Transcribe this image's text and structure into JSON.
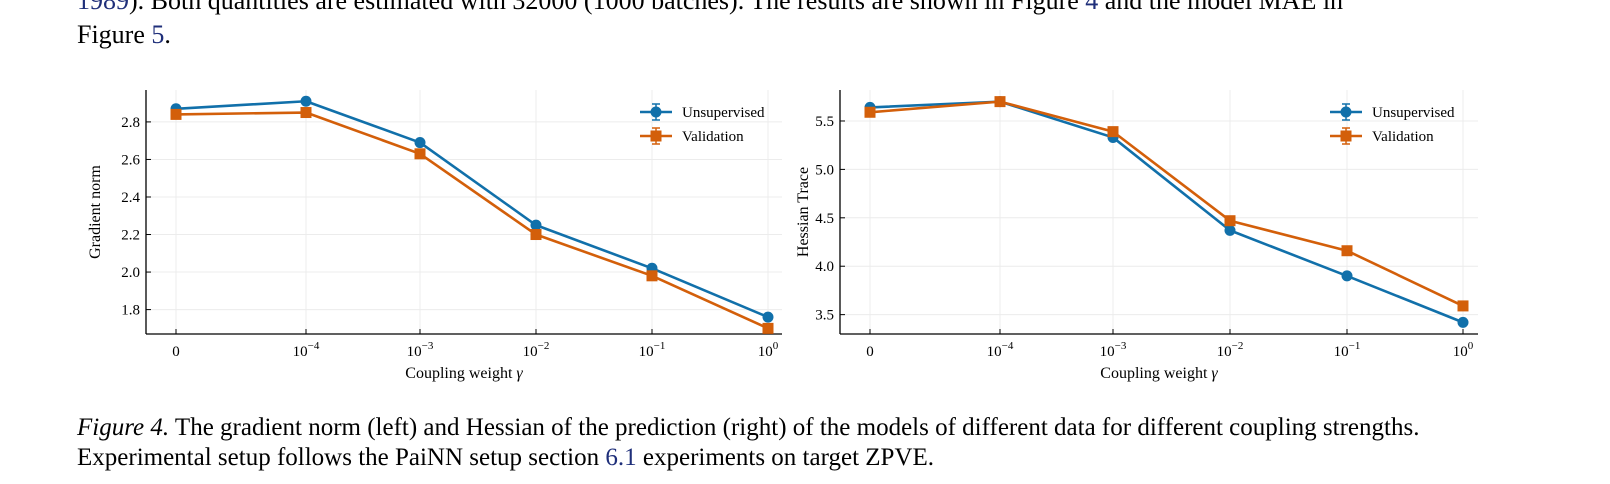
{
  "text": {
    "top_line_ref": "1989",
    "top_line_text": "). Both quantities are estimated with 32000 (1000 batches). The results are shown in Figure ",
    "top_line_fig_ref": "4",
    "top_line_tail": " and the model MAE in",
    "second_line_text": "Figure ",
    "second_line_ref": "5",
    "second_line_end": "."
  },
  "caption": {
    "label": "Figure 4.",
    "line1": " The gradient norm (left) and Hessian of the prediction (right) of the models of different data for different coupling strengths.",
    "line2_pre": "Experimental setup follows the PaiNN setup section ",
    "line2_ref": "6.1",
    "line2_post": " experiments on target ZPVE."
  },
  "colors": {
    "unsupervised": "#1170aa",
    "validation": "#d35f0a",
    "link": "#1f2f7a"
  },
  "chart_data": [
    {
      "type": "line",
      "categories": [
        "0",
        "10^-4",
        "10^-3",
        "10^-2",
        "10^-1",
        "10^0"
      ],
      "xlabel": "Coupling weight γ",
      "ylabel": "Gradient norm",
      "ylim": [
        1.67,
        2.97
      ],
      "yticks": [
        1.8,
        2.0,
        2.2,
        2.4,
        2.6,
        2.8
      ],
      "ytick_labels": [
        "1.8",
        "2.0",
        "2.2",
        "2.4",
        "2.6",
        "2.8"
      ],
      "grid": true,
      "legend_position": "top-right",
      "series": [
        {
          "name": "Unsupervised",
          "marker": "circle",
          "values": [
            2.87,
            2.91,
            2.69,
            2.25,
            2.02,
            1.76
          ]
        },
        {
          "name": "Validation",
          "marker": "square",
          "values": [
            2.84,
            2.85,
            2.63,
            2.2,
            1.98,
            1.7
          ]
        }
      ]
    },
    {
      "type": "line",
      "categories": [
        "0",
        "10^-4",
        "10^-3",
        "10^-2",
        "10^-1",
        "10^0"
      ],
      "xlabel": "Coupling weight γ",
      "ylabel": "Hessian Trace",
      "ylim": [
        3.3,
        5.82
      ],
      "yticks": [
        3.5,
        4.0,
        4.5,
        5.0,
        5.5
      ],
      "ytick_labels": [
        "3.5",
        "4.0",
        "4.5",
        "5.0",
        "5.5"
      ],
      "grid": true,
      "legend_position": "top-right",
      "series": [
        {
          "name": "Unsupervised",
          "marker": "circle",
          "values": [
            5.64,
            5.7,
            5.33,
            4.37,
            3.9,
            3.42
          ]
        },
        {
          "name": "Validation",
          "marker": "square",
          "values": [
            5.59,
            5.7,
            5.39,
            4.47,
            4.16,
            3.59
          ]
        }
      ]
    }
  ]
}
